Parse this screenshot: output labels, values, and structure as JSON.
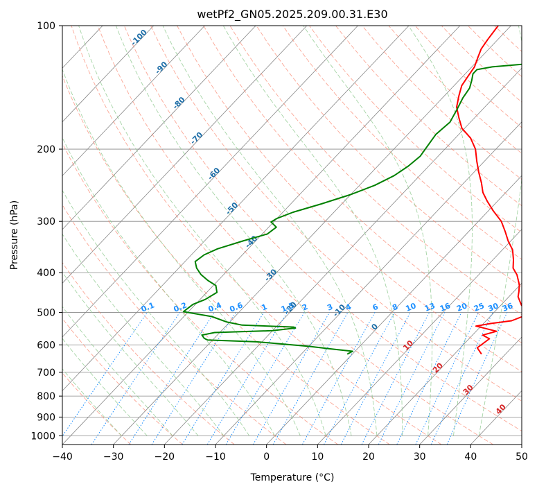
{
  "chart_data": {
    "type": "line",
    "title": "wetPf2_GN05.2025.209.00.31.E30",
    "xlabel": "Temperature (°C)",
    "ylabel": "Pressure (hPa)",
    "xlim": [
      -40,
      50
    ],
    "ylim": [
      1050,
      100
    ],
    "y_scale": "log",
    "x_ticks": [
      -40,
      -30,
      -20,
      -10,
      0,
      10,
      20,
      30,
      40,
      50
    ],
    "x_tick_labels": [
      "−40",
      "−30",
      "−20",
      "−10",
      "0",
      "10",
      "20",
      "30",
      "40",
      "50"
    ],
    "y_ticks": [
      1000,
      900,
      800,
      700,
      600,
      500,
      400,
      300,
      200,
      100
    ],
    "y_tick_labels": [
      "1000",
      "900",
      "800",
      "700",
      "600",
      "500",
      "400",
      "300",
      "200",
      "100"
    ],
    "grid": true,
    "background": "skew-T log-P diagram",
    "series": [
      {
        "role": "temperature",
        "color": "#ff0000",
        "points": [
          [
            25.3,
            632
          ],
          [
            23.3,
            610
          ],
          [
            24.0,
            580
          ],
          [
            22.0,
            568
          ],
          [
            24.0,
            556
          ],
          [
            19.0,
            540
          ],
          [
            21.5,
            532
          ],
          [
            25.0,
            524
          ],
          [
            26.3,
            512
          ],
          [
            25.8,
            495
          ],
          [
            24.0,
            480
          ],
          [
            23.0,
            470
          ],
          [
            21.8,
            458
          ],
          [
            21.0,
            445
          ],
          [
            19.8,
            428
          ],
          [
            17.5,
            405
          ],
          [
            15.5,
            390
          ],
          [
            14.0,
            372
          ],
          [
            12.0,
            352
          ],
          [
            9.5,
            335
          ],
          [
            7.2,
            318
          ],
          [
            4.5,
            300
          ],
          [
            1.0,
            283
          ],
          [
            -2.0,
            268
          ],
          [
            -4.5,
            255
          ],
          [
            -6.5,
            242
          ],
          [
            -9.0,
            228
          ],
          [
            -11.5,
            214
          ],
          [
            -14.0,
            200
          ],
          [
            -17.0,
            188
          ],
          [
            -20.5,
            178
          ],
          [
            -23.0,
            168
          ],
          [
            -25.5,
            158
          ],
          [
            -27.2,
            148
          ],
          [
            -28.5,
            140
          ],
          [
            -29.0,
            133
          ],
          [
            -29.5,
            126
          ],
          [
            -30.5,
            120
          ],
          [
            -31.5,
            114
          ],
          [
            -32.0,
            108
          ],
          [
            -32.5,
            100
          ]
        ]
      },
      {
        "role": "dewpoint",
        "color": "#008000",
        "points": [
          [
            -1.0,
            632
          ],
          [
            -0.5,
            622
          ],
          [
            -4.5,
            615
          ],
          [
            -10.0,
            605
          ],
          [
            -21.0,
            590
          ],
          [
            -31.0,
            584
          ],
          [
            -32.0,
            578
          ],
          [
            -33.0,
            568
          ],
          [
            -31.0,
            560
          ],
          [
            -20.0,
            554
          ],
          [
            -16.0,
            546
          ],
          [
            -16.5,
            543
          ],
          [
            -27.0,
            537
          ],
          [
            -30.5,
            528
          ],
          [
            -34.5,
            512
          ],
          [
            -41.0,
            498
          ],
          [
            -40.5,
            478
          ],
          [
            -39.0,
            465
          ],
          [
            -38.0,
            447
          ],
          [
            -39.5,
            430
          ],
          [
            -42.0,
            418
          ],
          [
            -44.5,
            404
          ],
          [
            -46.5,
            390
          ],
          [
            -48.0,
            376
          ],
          [
            -47.5,
            362
          ],
          [
            -46.0,
            350
          ],
          [
            -42.5,
            335
          ],
          [
            -39.0,
            322
          ],
          [
            -38.5,
            310
          ],
          [
            -40.5,
            301
          ],
          [
            -40.0,
            295
          ],
          [
            -38.0,
            285
          ],
          [
            -34.0,
            272
          ],
          [
            -30.0,
            258
          ],
          [
            -27.0,
            245
          ],
          [
            -25.0,
            232
          ],
          [
            -24.0,
            220
          ],
          [
            -23.5,
            208
          ],
          [
            -24.0,
            196
          ],
          [
            -24.5,
            184
          ],
          [
            -24.0,
            172
          ],
          [
            -25.0,
            160
          ],
          [
            -26.0,
            150
          ],
          [
            -26.5,
            142
          ],
          [
            -27.5,
            136
          ],
          [
            -28.5,
            131
          ],
          [
            -28.5,
            128
          ],
          [
            -26.0,
            126
          ],
          [
            -20.0,
            124
          ],
          [
            -19.0,
            121
          ],
          [
            -18.0,
            117
          ],
          [
            -18.5,
            113
          ],
          [
            -19.5,
            111
          ],
          [
            -20.0,
            108
          ],
          [
            -20.5,
            104
          ],
          [
            -21.5,
            100
          ]
        ]
      }
    ],
    "dry_adiabat_labels": [
      "-100",
      "-90",
      "-80",
      "-70",
      "-60",
      "-50",
      "-40",
      "-30",
      "-20",
      "-10",
      "0",
      "10",
      "20",
      "30",
      "40"
    ],
    "mixing_ratio_labels": [
      "0.1",
      "0.2",
      "0.4",
      "0.6",
      "1",
      "1.5",
      "2",
      "3",
      "4",
      "6",
      "8",
      "10",
      "13",
      "16",
      "20",
      "25",
      "30",
      "36"
    ],
    "colors": {
      "temperature": "#ff0000",
      "dewpoint": "#008000",
      "isotherm": "#888888",
      "dry_adiabat": "#fa8068",
      "moist_adiabat": "#8fc98f",
      "mixing_ratio": "#1e90ff",
      "dry_label": "#1f6fa8",
      "dry_label_warm": "#d62728"
    }
  }
}
